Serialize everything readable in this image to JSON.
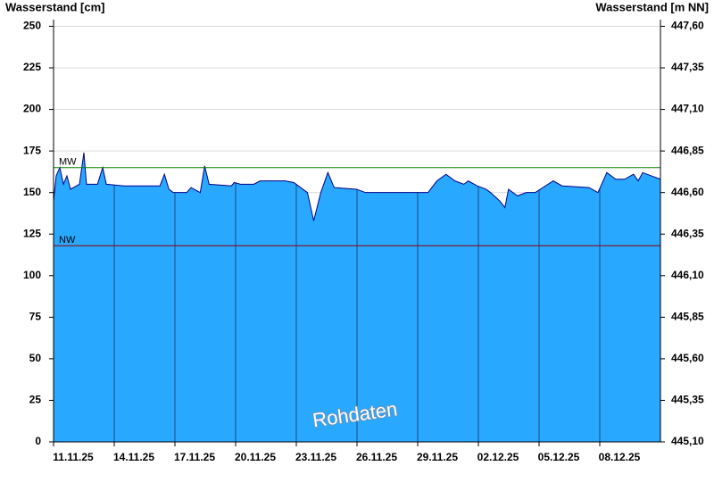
{
  "chart_data": {
    "type": "area",
    "y_label": "Wasserstand [cm]",
    "y2_label": "Wasserstand [m NN]",
    "watermark": "Rohdaten",
    "xlim": [
      0,
      30
    ],
    "xticks": [
      {
        "value": 0,
        "label": "11.11.25"
      },
      {
        "value": 3,
        "label": "14.11.25"
      },
      {
        "value": 6,
        "label": "17.11.25"
      },
      {
        "value": 9,
        "label": "20.11.25"
      },
      {
        "value": 12,
        "label": "23.11.25"
      },
      {
        "value": 15,
        "label": "26.11.25"
      },
      {
        "value": 18,
        "label": "29.11.25"
      },
      {
        "value": 21,
        "label": "02.12.25"
      },
      {
        "value": 24,
        "label": "05.12.25"
      },
      {
        "value": 27,
        "label": "08.12.25"
      }
    ],
    "ylim": [
      0,
      254
    ],
    "yticks": [
      0,
      25,
      50,
      75,
      100,
      125,
      150,
      175,
      200,
      225,
      250
    ],
    "y2lim": [
      445.1,
      447.64
    ],
    "y2ticks": [
      {
        "value": 445.1,
        "label": "445,10"
      },
      {
        "value": 445.35,
        "label": "445,35"
      },
      {
        "value": 445.6,
        "label": "445,60"
      },
      {
        "value": 445.85,
        "label": "445,85"
      },
      {
        "value": 446.1,
        "label": "446,10"
      },
      {
        "value": 446.35,
        "label": "446,35"
      },
      {
        "value": 446.6,
        "label": "446,60"
      },
      {
        "value": 446.85,
        "label": "446,85"
      },
      {
        "value": 447.1,
        "label": "447,10"
      },
      {
        "value": 447.35,
        "label": "447,35"
      },
      {
        "value": 447.6,
        "label": "447,60"
      }
    ],
    "grid": true,
    "x": [
      0,
      0.13,
      0.31,
      0.49,
      0.66,
      0.84,
      1.28,
      1.5,
      1.63,
      2.17,
      2.43,
      2.61,
      3.49,
      5.26,
      5.48,
      5.7,
      5.92,
      6.58,
      6.8,
      7.25,
      7.47,
      7.69,
      8.79,
      8.93,
      9.24,
      9.9,
      10.21,
      11.44,
      11.88,
      12.55,
      12.86,
      13.21,
      13.56,
      13.87,
      14.98,
      15.42,
      17.63,
      18.51,
      18.95,
      19.4,
      19.84,
      20.28,
      20.5,
      20.94,
      21.38,
      21.6,
      22.05,
      22.31,
      22.49,
      22.93,
      23.37,
      23.81,
      24.7,
      25.14,
      26.47,
      26.91,
      27.35,
      27.79,
      28.23,
      28.67,
      28.9,
      29.12,
      29.56,
      30
    ],
    "series": [
      {
        "name": "Wasserstand",
        "color": "#29a8ff",
        "line_color": "#00008b",
        "values": [
          145,
          160,
          165,
          155,
          160,
          152,
          155,
          174,
          155,
          155,
          165,
          155,
          154,
          154,
          161,
          152,
          150,
          150,
          153,
          150,
          166,
          155,
          154,
          156,
          155,
          155,
          157,
          157,
          156,
          150,
          133,
          150,
          162,
          153,
          152,
          150,
          150,
          150,
          157,
          161,
          157,
          155,
          157,
          154,
          152,
          150,
          145,
          141,
          152,
          148,
          150,
          150,
          157,
          154,
          153,
          150,
          162,
          158,
          158,
          161,
          157,
          162,
          160,
          158
        ]
      }
    ],
    "reference_lines": [
      {
        "label": "MW",
        "value": 165,
        "color": "#008000"
      },
      {
        "label": "NW",
        "value": 118,
        "color": "#8b0000"
      }
    ]
  }
}
